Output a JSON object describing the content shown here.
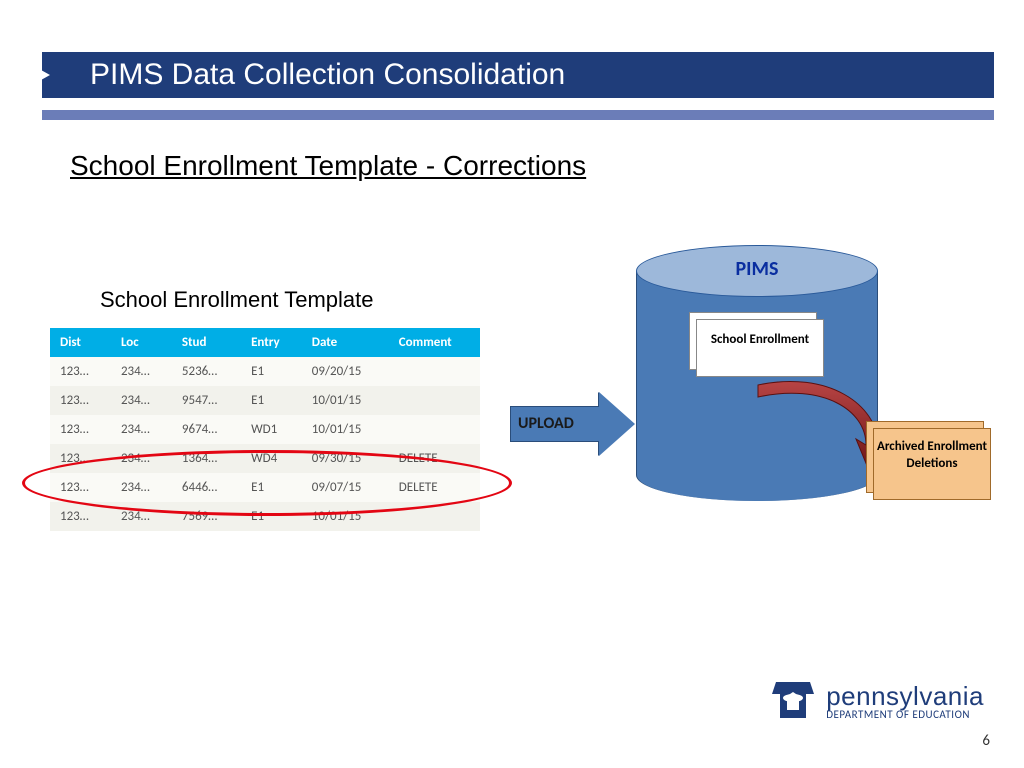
{
  "header": {
    "title": "PIMS Data Collection Consolidation",
    "title_bg": "#1f3d7a",
    "subbar_bg": "#6b7db8"
  },
  "subtitle": "School Enrollment Template - Corrections",
  "table": {
    "title": "School Enrollment Template",
    "header_bg": "#00aee6",
    "columns": [
      "Dist",
      "Loc",
      "Stud",
      "Entry",
      "Date",
      "Comment"
    ],
    "rows": [
      [
        "123…",
        "234…",
        "5236…",
        "E1",
        "09/20/15",
        ""
      ],
      [
        "123…",
        "234…",
        "9547…",
        "E1",
        "10/01/15",
        ""
      ],
      [
        "123…",
        "234…",
        "9674…",
        "WD1",
        "10/01/15",
        ""
      ],
      [
        "123…",
        "234…",
        "1364…",
        "WD4",
        "09/30/15",
        "DELETE"
      ],
      [
        "123…",
        "234…",
        "6446…",
        "E1",
        "09/07/15",
        "DELETE"
      ],
      [
        "123…",
        "234…",
        "7569…",
        "E1",
        "10/01/15",
        ""
      ]
    ],
    "highlight_rows": [
      3,
      4
    ],
    "highlight_color": "#e30613"
  },
  "diagram": {
    "arrow_label": "UPLOAD",
    "arrow_fill": "#4a7ab5",
    "cylinder": {
      "label": "PIMS",
      "label_color": "#0a2ea0",
      "body_fill": "#4a7ab5",
      "top_fill": "#9db8da",
      "inner_box_text": "School Enrollment"
    },
    "archive_box": {
      "text": "Archived Enrollment Deletions",
      "fill": "#f6c58c",
      "border": "#a06a2a"
    },
    "curved_arrow_color": "#8b1a1a"
  },
  "footer": {
    "logo_main": "pennsylvania",
    "logo_sub": "DEPARTMENT OF EDUCATION",
    "logo_color": "#1f3d7a",
    "page_number": "6"
  }
}
